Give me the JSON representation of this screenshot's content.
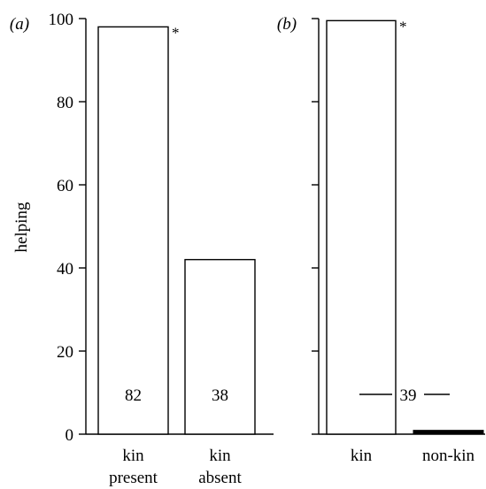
{
  "chart_data": [
    {
      "type": "bar",
      "panel_label": "(a)",
      "categories": [
        [
          "kin",
          "present"
        ],
        [
          "kin",
          "absent"
        ]
      ],
      "values": [
        98,
        42
      ],
      "sample_sizes": [
        "82",
        "38"
      ],
      "significance": [
        "*",
        ""
      ],
      "ylabel": "helping",
      "ylim": [
        0,
        100
      ],
      "yticks": [
        "0",
        "20",
        "40",
        "60",
        "80",
        "100"
      ],
      "grid": false,
      "legend": "none"
    },
    {
      "type": "bar",
      "panel_label": "(b)",
      "categories": [
        [
          "kin"
        ],
        [
          "non-kin"
        ]
      ],
      "values": [
        99.5,
        0.5
      ],
      "sample_size_shared": "39",
      "significance": [
        "*",
        ""
      ],
      "ylim": [
        0,
        100
      ],
      "yticks": [
        "",
        "",
        "",
        "",
        "",
        ""
      ],
      "grid": false,
      "legend": "none"
    }
  ]
}
